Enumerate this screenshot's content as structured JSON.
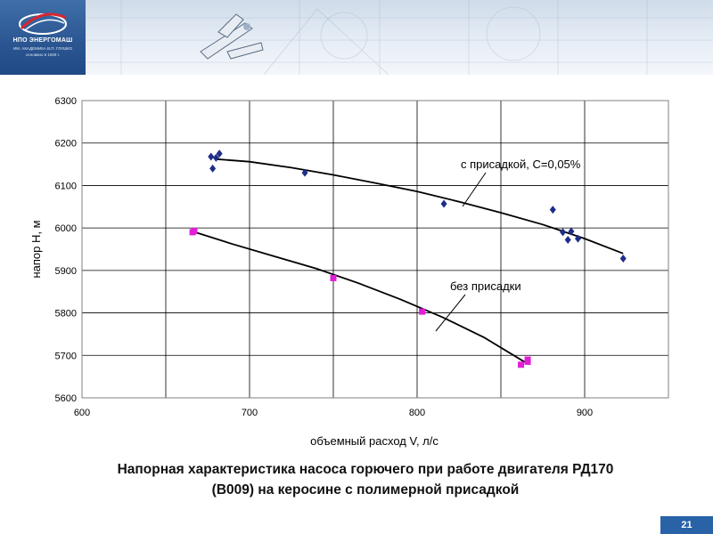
{
  "header": {
    "brand": "НПО ЭНЕРГОМАШ",
    "brand_sub": "ИМ. АКАДЕМИКА В.П. ГЛУШКО",
    "brand_sub2": "основано в 1929 г."
  },
  "colors": {
    "banner_dark": "#2a5591",
    "series_with_additive": "#1f2d8a",
    "series_without_additive": "#e01fd6",
    "badge": "#2a62a8"
  },
  "chart_data": {
    "type": "scatter",
    "xlabel": "объемный расход V, л/с",
    "ylabel": "напор H, м",
    "xlim": [
      600,
      950
    ],
    "ylim": [
      5600,
      6300
    ],
    "xticks": [
      600,
      700,
      800,
      900
    ],
    "yticks": [
      5600,
      5700,
      5800,
      5900,
      6000,
      6100,
      6200,
      6300
    ],
    "grid": true,
    "series": [
      {
        "name": "с присадкой, С=0,05%",
        "marker": "diamond",
        "points": [
          [
            677,
            6168
          ],
          [
            678,
            6140
          ],
          [
            680,
            6165
          ],
          [
            682,
            6175
          ],
          [
            733,
            6130
          ],
          [
            816,
            6057
          ],
          [
            881,
            6043
          ],
          [
            887,
            5990
          ],
          [
            890,
            5972
          ],
          [
            892,
            5992
          ],
          [
            896,
            5975
          ],
          [
            923,
            5928
          ]
        ],
        "trend": [
          [
            680,
            6162
          ],
          [
            700,
            6156
          ],
          [
            725,
            6142
          ],
          [
            750,
            6125
          ],
          [
            775,
            6106
          ],
          [
            800,
            6086
          ],
          [
            825,
            6062
          ],
          [
            850,
            6036
          ],
          [
            875,
            6008
          ],
          [
            900,
            5975
          ],
          [
            923,
            5940
          ]
        ]
      },
      {
        "name": "без присадки",
        "marker": "square",
        "points": [
          [
            666,
            5990
          ],
          [
            667,
            5993
          ],
          [
            750,
            5882
          ],
          [
            803,
            5803
          ],
          [
            862,
            5678
          ],
          [
            866,
            5685
          ],
          [
            866,
            5690
          ]
        ],
        "trend": [
          [
            666,
            5992
          ],
          [
            690,
            5962
          ],
          [
            715,
            5933
          ],
          [
            740,
            5904
          ],
          [
            765,
            5870
          ],
          [
            790,
            5832
          ],
          [
            815,
            5790
          ],
          [
            840,
            5742
          ],
          [
            866,
            5680
          ]
        ]
      }
    ],
    "annotations": [
      {
        "text": "с присадкой, С=0,05%",
        "series": 0
      },
      {
        "text": "без присадки",
        "series": 1
      }
    ]
  },
  "caption": {
    "line1": "Напорная характеристика насоса горючего при работе двигателя РД170",
    "line2": "(В009) на керосине с полимерной присадкой"
  },
  "page_number": "21"
}
